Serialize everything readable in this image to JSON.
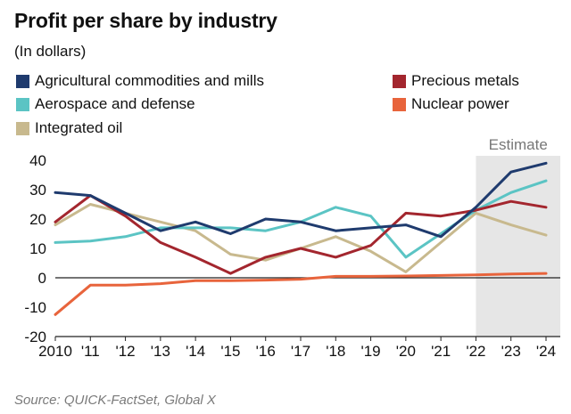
{
  "chart_data": {
    "type": "line",
    "title": "Profit per share by industry",
    "subtitle": "(In dollars)",
    "source": "Source: QUICK-FactSet, Global X",
    "estimate_label": "Estimate",
    "estimate_from": "'22",
    "x": [
      "2010",
      "'11",
      "'12",
      "'13",
      "'14",
      "'15",
      "'16",
      "'17",
      "'18",
      "'19",
      "'20",
      "'21",
      "'22",
      "'23",
      "'24"
    ],
    "ylim": [
      -20,
      40
    ],
    "yticks": [
      40,
      30,
      20,
      10,
      0,
      -10,
      -20
    ],
    "grid": false,
    "series": [
      {
        "name": "Agricultural commodities and mills",
        "color": "#1f3b6e",
        "values": [
          29,
          28,
          22,
          16,
          19,
          15,
          20,
          19,
          16,
          17,
          18,
          14,
          24,
          36,
          39
        ]
      },
      {
        "name": "Aerospace and defense",
        "color": "#5bc4c4",
        "values": [
          12,
          12.5,
          14,
          17,
          17,
          17,
          16,
          19,
          24,
          21,
          7,
          15,
          23,
          29,
          33
        ]
      },
      {
        "name": "Integrated oil",
        "color": "#c8b98e",
        "values": [
          18,
          25,
          22,
          19,
          16,
          8,
          6,
          10,
          14,
          9,
          2,
          12,
          22,
          18,
          14.5
        ]
      },
      {
        "name": "Precious metals",
        "color": "#a3262e",
        "values": [
          19,
          28,
          21,
          12,
          7,
          1.5,
          7,
          10,
          7,
          11,
          22,
          21,
          23,
          26,
          24
        ]
      },
      {
        "name": "Nuclear power",
        "color": "#e8643c",
        "values": [
          -12.5,
          -2.5,
          -2.5,
          -2,
          -1,
          -1,
          -0.8,
          -0.5,
          0.5,
          0.5,
          0.6,
          0.8,
          1,
          1.3,
          1.5
        ]
      }
    ]
  }
}
